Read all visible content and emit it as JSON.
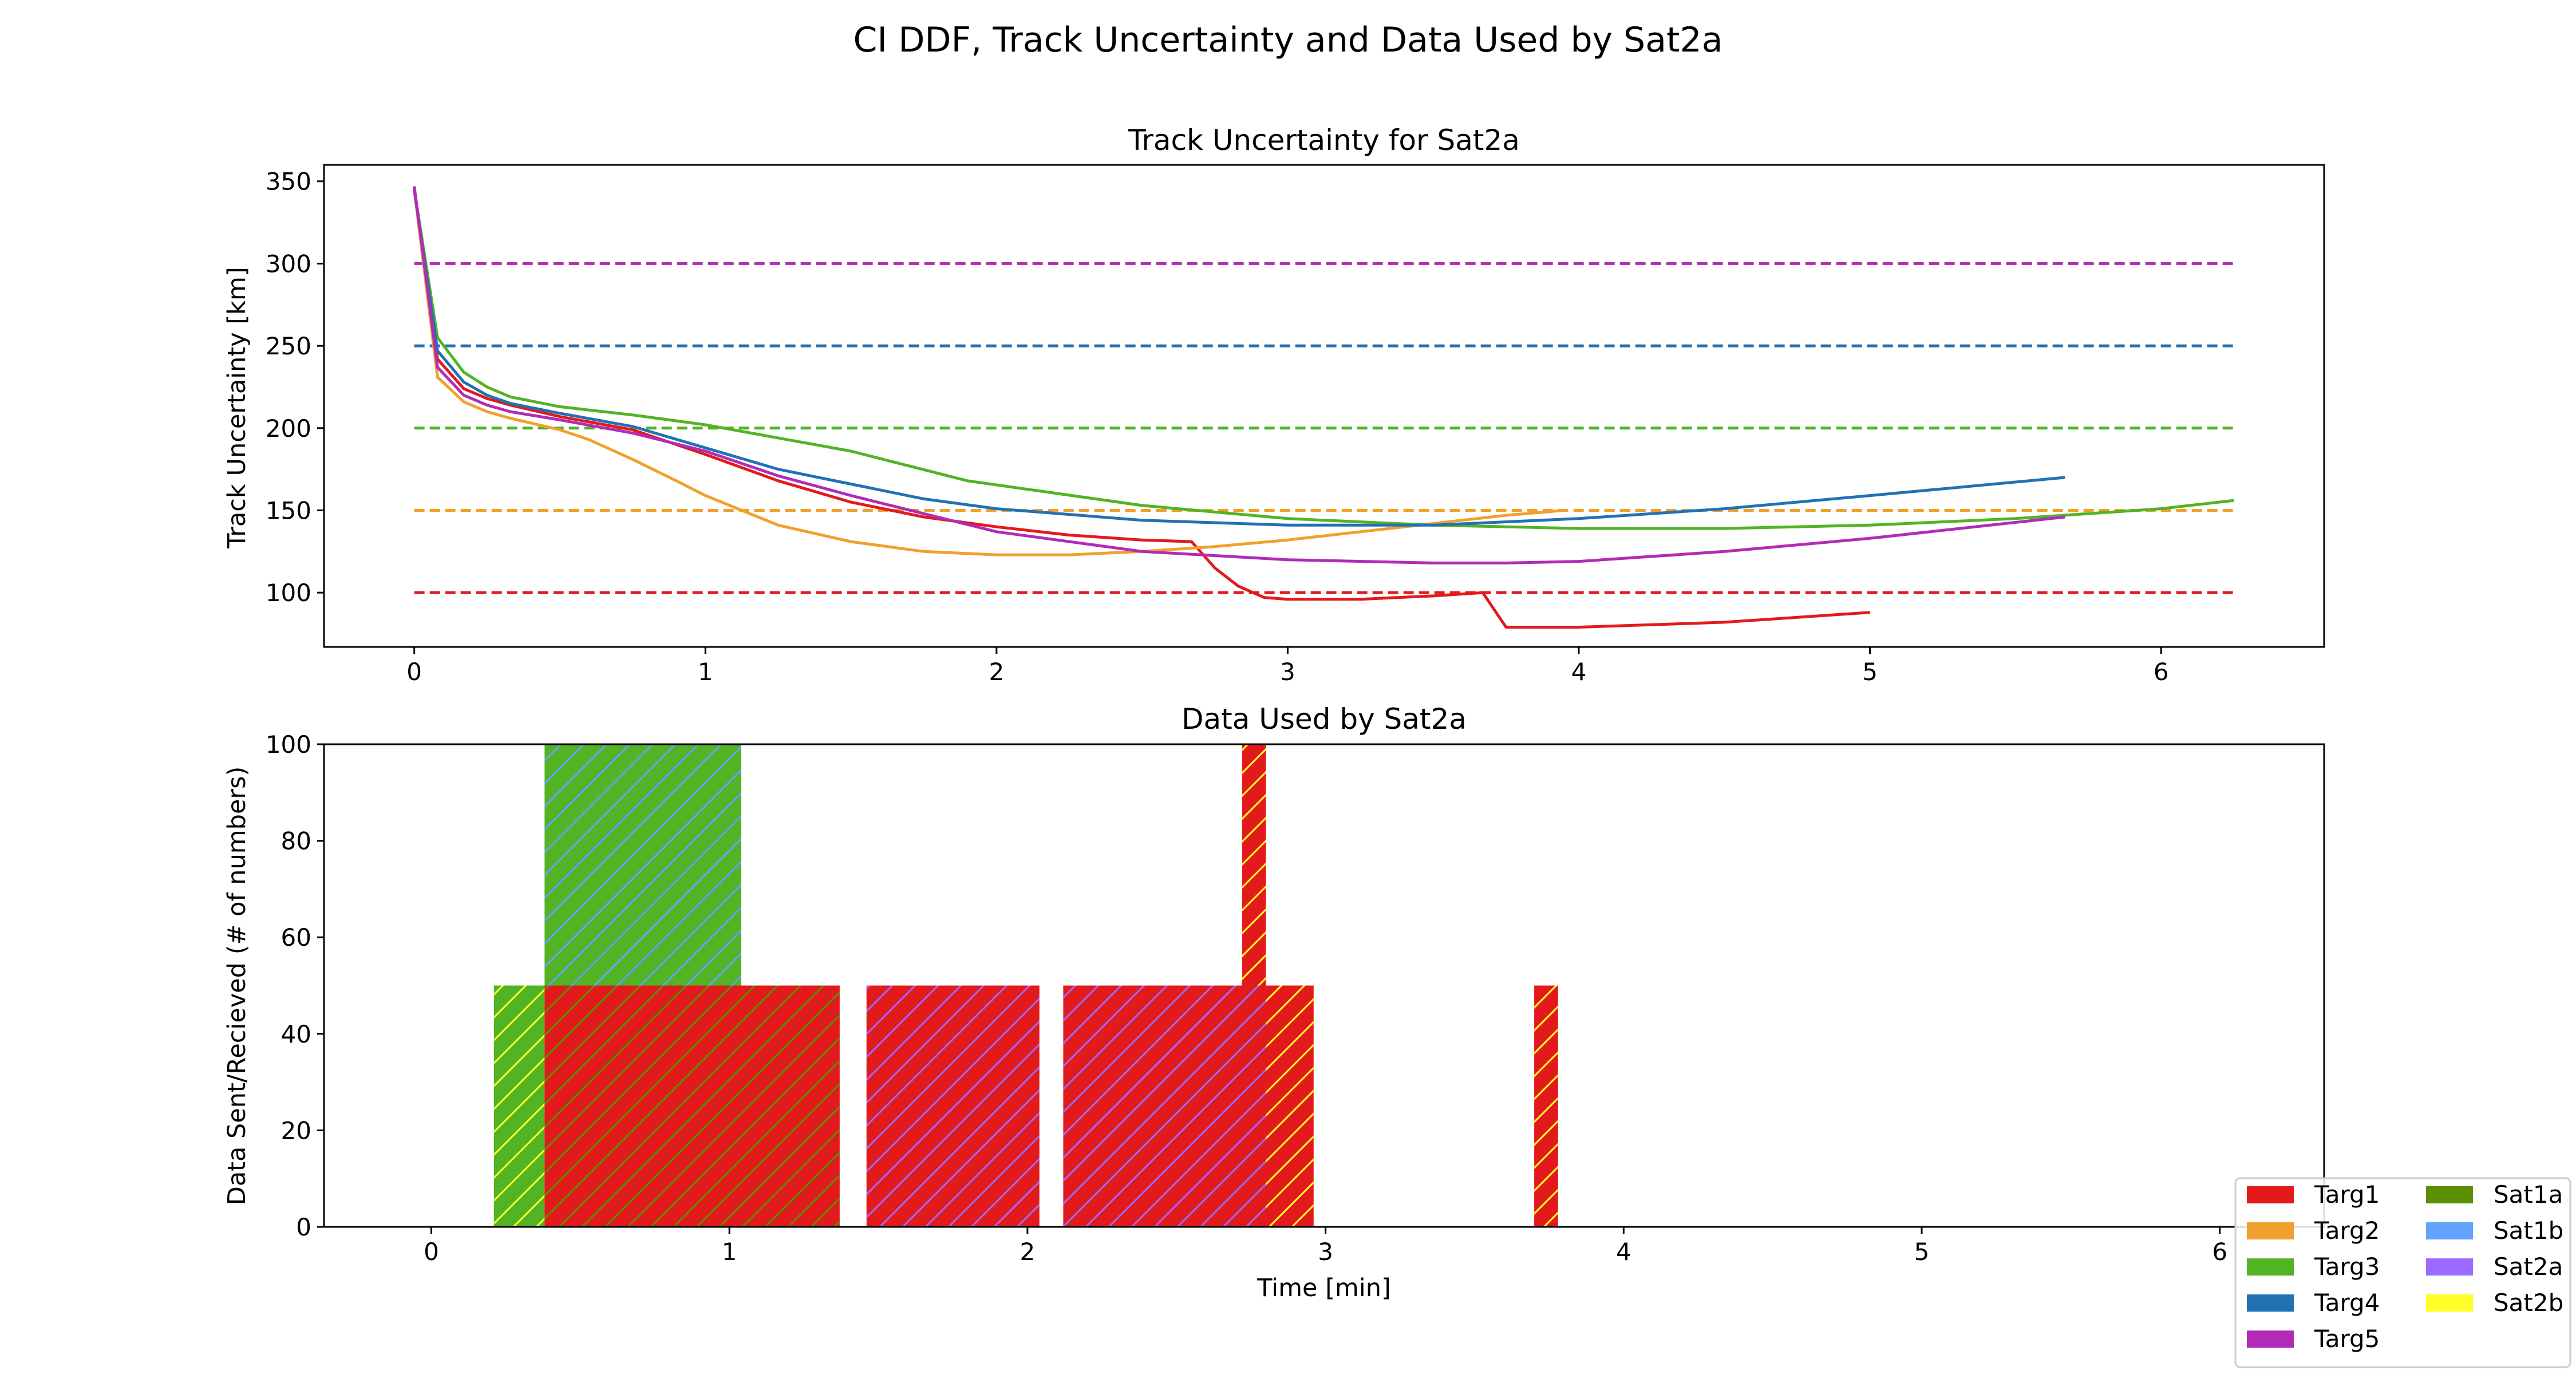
{
  "figure": {
    "suptitle": "CI DDF, Track Uncertainty and Data Used by Sat2a"
  },
  "colors": {
    "Targ1": "#e31a1c",
    "Targ2": "#f0a02c",
    "Targ3": "#52b325",
    "Targ4": "#2171b5",
    "Targ5": "#b22bb8",
    "Sat1a": "#5a8f00",
    "Sat1b": "#62a3ff",
    "Sat2a": "#9b6bff",
    "Sat2b": "#ffff2a"
  },
  "legend": {
    "placement": "bottom-right",
    "columns": [
      [
        "Targ1",
        "Targ2",
        "Targ3",
        "Targ4",
        "Targ5"
      ],
      [
        "Sat1a",
        "Sat1b",
        "Sat2a",
        "Sat2b"
      ]
    ]
  },
  "chart_data": [
    {
      "type": "line",
      "title": "Track Uncertainty for Sat2a",
      "xlabel": "",
      "ylabel": "Track Uncertainty [km]",
      "xlim": [
        -0.31,
        6.56
      ],
      "ylim": [
        67,
        360
      ],
      "xticks": [
        0,
        1,
        2,
        3,
        4,
        5,
        6
      ],
      "yticks": [
        100,
        150,
        200,
        250,
        300,
        350
      ],
      "grid": false,
      "thresholds": [
        {
          "name": "Targ1",
          "value": 100,
          "x": [
            0,
            6.25
          ]
        },
        {
          "name": "Targ2",
          "value": 150,
          "x": [
            0,
            6.25
          ]
        },
        {
          "name": "Targ3",
          "value": 200,
          "x": [
            0,
            6.25
          ]
        },
        {
          "name": "Targ4",
          "value": 250,
          "x": [
            0,
            6.25
          ]
        },
        {
          "name": "Targ5",
          "value": 300,
          "x": [
            0,
            6.25
          ]
        }
      ],
      "series": [
        {
          "name": "Targ1",
          "x": [
            0,
            0.08,
            0.17,
            0.25,
            0.33,
            0.5,
            0.75,
            1.0,
            1.25,
            1.5,
            1.75,
            2.0,
            2.25,
            2.5,
            2.67,
            2.75,
            2.83,
            2.92,
            3.0,
            3.25,
            3.5,
            3.67,
            3.75,
            4.0,
            4.5,
            5.0
          ],
          "y": [
            345,
            242,
            224,
            218,
            214,
            207,
            199,
            184,
            168,
            155,
            146,
            140,
            135,
            132,
            131,
            115,
            104,
            97,
            96,
            96,
            98,
            100,
            79,
            79,
            82,
            88
          ]
        },
        {
          "name": "Targ2",
          "x": [
            0,
            0.08,
            0.17,
            0.25,
            0.33,
            0.5,
            0.6,
            0.75,
            0.9,
            1.0,
            1.25,
            1.5,
            1.75,
            2.0,
            2.25,
            2.5,
            2.75,
            3.0,
            3.25,
            3.5,
            3.75,
            3.95
          ],
          "y": [
            345,
            231,
            216,
            210,
            206,
            199,
            193,
            181,
            168,
            159,
            141,
            131,
            125,
            123,
            123,
            125,
            128,
            132,
            137,
            142,
            147,
            150
          ]
        },
        {
          "name": "Targ3",
          "x": [
            0,
            0.08,
            0.17,
            0.25,
            0.33,
            0.5,
            0.75,
            1.0,
            1.5,
            1.9,
            2.5,
            3.0,
            3.5,
            4.0,
            4.5,
            5.0,
            5.5,
            6.0,
            6.25
          ],
          "y": [
            345,
            255,
            234,
            225,
            219,
            213,
            208,
            202,
            186,
            168,
            153,
            145,
            141,
            139,
            139,
            141,
            145,
            151,
            156
          ]
        },
        {
          "name": "Targ4",
          "x": [
            0,
            0.08,
            0.17,
            0.25,
            0.33,
            0.5,
            0.75,
            1.0,
            1.25,
            1.5,
            1.75,
            2.0,
            2.5,
            3.0,
            3.5,
            4.0,
            4.5,
            5.0,
            5.67
          ],
          "y": [
            345,
            247,
            228,
            220,
            215,
            209,
            201,
            188,
            175,
            166,
            157,
            151,
            144,
            141,
            141,
            145,
            151,
            159,
            170
          ]
        },
        {
          "name": "Targ5",
          "x": [
            0,
            0.08,
            0.17,
            0.25,
            0.33,
            0.5,
            0.75,
            1.0,
            1.25,
            1.5,
            2.0,
            2.5,
            3.0,
            3.5,
            3.75,
            4.0,
            4.5,
            5.0,
            5.67
          ],
          "y": [
            347,
            237,
            220,
            214,
            210,
            205,
            197,
            186,
            171,
            159,
            137,
            125,
            120,
            118,
            118,
            119,
            125,
            133,
            146
          ]
        }
      ]
    },
    {
      "type": "bar",
      "title": "Data Used by Sat2a",
      "xlabel": "Time [min]",
      "ylabel": "Data Sent/Recieved (# of numbers)",
      "xlim": [
        -0.36,
        6.35
      ],
      "ylim": [
        0,
        100
      ],
      "xticks": [
        0,
        1,
        2,
        3,
        4,
        5,
        6
      ],
      "yticks": [
        0,
        20,
        40,
        60,
        80,
        100
      ],
      "grid": false,
      "bars": [
        {
          "x0": 0.21,
          "x1": 0.38,
          "y0": 0,
          "y1": 50,
          "target": "Targ3",
          "sat": "Sat2b"
        },
        {
          "x0": 0.38,
          "x1": 1.04,
          "y0": 50,
          "y1": 100,
          "target": "Targ3",
          "sat": "Sat1b"
        },
        {
          "x0": 0.38,
          "x1": 1.37,
          "y0": 0,
          "y1": 50,
          "target": "Targ1",
          "sat": "Sat1a"
        },
        {
          "x0": 1.46,
          "x1": 2.04,
          "y0": 0,
          "y1": 50,
          "target": "Targ1",
          "sat": "Sat2a"
        },
        {
          "x0": 2.12,
          "x1": 2.8,
          "y0": 0,
          "y1": 50,
          "target": "Targ1",
          "sat": "Sat2a"
        },
        {
          "x0": 2.8,
          "x1": 2.96,
          "y0": 0,
          "y1": 50,
          "target": "Targ1",
          "sat": "Sat2b"
        },
        {
          "x0": 2.72,
          "x1": 2.8,
          "y0": 50,
          "y1": 100,
          "target": "Targ1",
          "sat": "Sat2b"
        },
        {
          "x0": 3.7,
          "x1": 3.78,
          "y0": 0,
          "y1": 50,
          "target": "Targ1",
          "sat": "Sat2b"
        }
      ]
    }
  ]
}
